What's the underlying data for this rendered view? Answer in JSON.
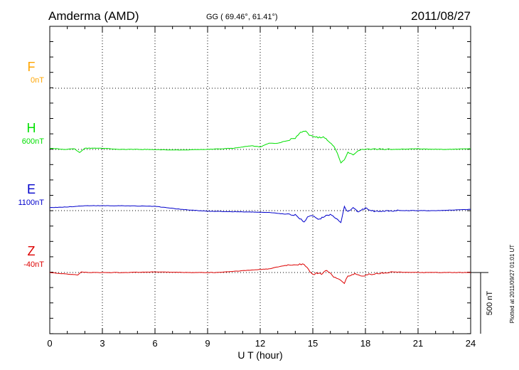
{
  "header": {
    "station": "Amderma (AMD)",
    "coords": "GG ( 69.46°,  61.41°)",
    "date": "2011/08/27"
  },
  "footer": {
    "plotted": "Plotted at 2011/09/27 01:01  UT",
    "scale_label": "500 nT"
  },
  "chart_data": {
    "type": "line",
    "xlabel": "U T (hour)",
    "xlim": [
      0,
      24
    ],
    "xticks": [
      "0",
      "3",
      "6",
      "9",
      "12",
      "15",
      "18",
      "21",
      "24"
    ],
    "scale_nT": 500,
    "colors": {
      "F": "#ffa500",
      "H": "#00e000",
      "E": "#0000cc",
      "Z": "#dd0000"
    },
    "series": [
      {
        "name": "F",
        "baseline": "0nT",
        "values": []
      },
      {
        "name": "H",
        "baseline": "600nT",
        "x": [
          0,
          0.8,
          1.4,
          1.7,
          2.0,
          3.0,
          4.0,
          5.5,
          7.0,
          9.0,
          10.5,
          11.5,
          12.0,
          12.5,
          13.0,
          13.6,
          14.0,
          14.3,
          14.6,
          14.8,
          15.0,
          15.3,
          15.6,
          15.9,
          16.2,
          16.4,
          16.6,
          16.8,
          17.0,
          17.3,
          17.6,
          17.9,
          18.3,
          19.5,
          21.0,
          22.5,
          24.0
        ],
        "values": [
          10,
          0,
          5,
          -25,
          10,
          10,
          0,
          0,
          -5,
          0,
          10,
          30,
          20,
          50,
          50,
          75,
          95,
          140,
          145,
          120,
          110,
          95,
          100,
          70,
          20,
          -30,
          -110,
          -90,
          -20,
          -40,
          -10,
          0,
          5,
          0,
          5,
          0,
          5
        ]
      },
      {
        "name": "E",
        "baseline": "1100nT",
        "x": [
          0,
          1.0,
          2.0,
          4.0,
          6.0,
          7.5,
          9.0,
          11.0,
          12.5,
          13.5,
          14.0,
          14.5,
          14.7,
          15.0,
          15.3,
          15.6,
          16.0,
          16.3,
          16.6,
          16.8,
          17.0,
          17.3,
          17.6,
          18.0,
          18.5,
          20.0,
          22.0,
          24.0
        ],
        "values": [
          25,
          30,
          40,
          40,
          35,
          10,
          -5,
          -10,
          -15,
          -30,
          -35,
          -90,
          -55,
          -40,
          -75,
          -50,
          -30,
          -60,
          -95,
          30,
          -10,
          20,
          -10,
          20,
          -5,
          0,
          0,
          10
        ]
      },
      {
        "name": "Z",
        "baseline": "-40nT",
        "x": [
          0,
          1.6,
          1.8,
          2.2,
          4.0,
          6.0,
          8.0,
          9.5,
          11.0,
          12.5,
          13.5,
          14.5,
          15.0,
          15.2,
          15.5,
          15.8,
          16.2,
          16.6,
          16.8,
          17.0,
          17.4,
          17.8,
          18.2,
          19.5,
          21.0,
          22.5,
          24.0
        ],
        "values": [
          0,
          -20,
          5,
          0,
          0,
          5,
          0,
          0,
          15,
          30,
          60,
          70,
          -20,
          -5,
          -10,
          20,
          -40,
          -60,
          -85,
          -30,
          -10,
          -30,
          -15,
          5,
          0,
          0,
          0
        ]
      }
    ]
  }
}
